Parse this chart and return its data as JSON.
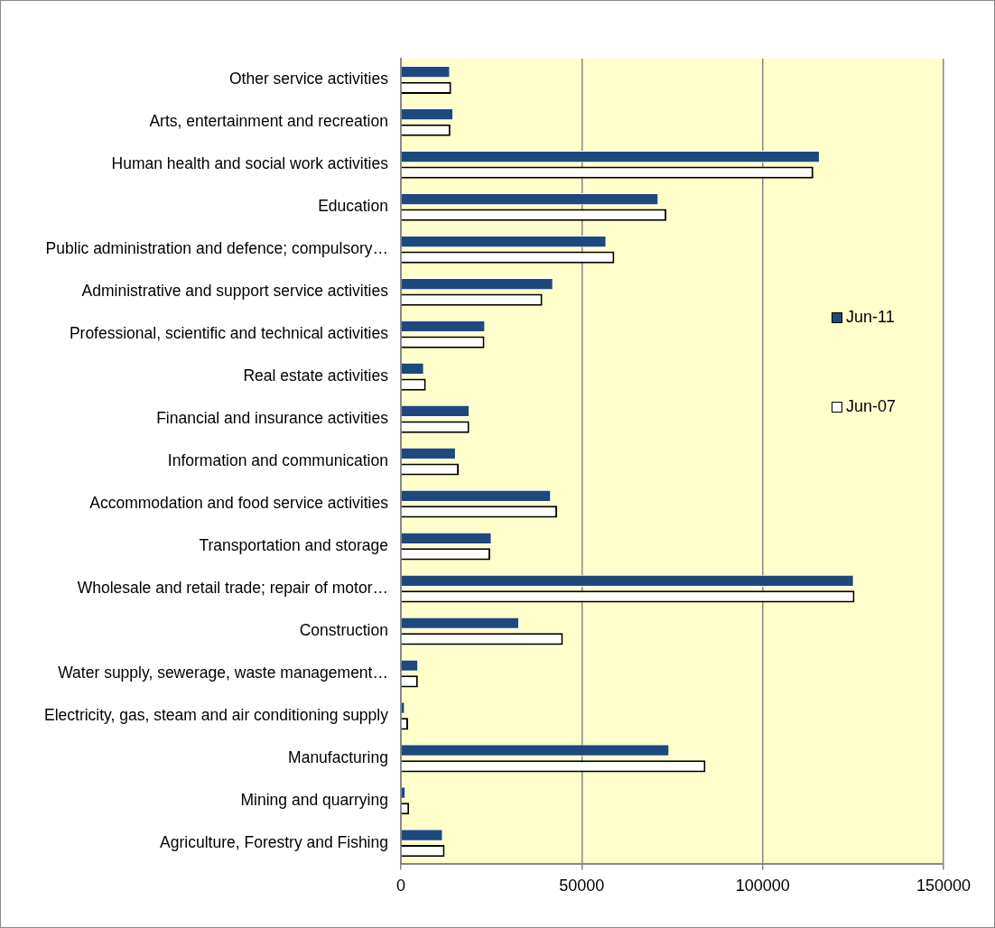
{
  "chart_data": {
    "type": "bar",
    "orientation": "horizontal",
    "categories": [
      "Other service activities",
      "Arts, entertainment and recreation",
      "Human health and social work activities",
      "Education",
      "Public administration and defence; compulsory…",
      "Administrative and support service activities",
      "Professional, scientific and technical activities",
      "Real estate activities",
      "Financial and insurance activities",
      "Information and communication",
      "Accommodation and food service activities",
      "Transportation and storage",
      "Wholesale and retail trade; repair of motor…",
      "Construction",
      "Water supply, sewerage, waste management…",
      "Electricity, gas, steam and air conditioning supply",
      "Manufacturing",
      "Mining and quarrying",
      "Agriculture, Forestry and Fishing"
    ],
    "series": [
      {
        "name": "Jun-11",
        "color": "#1f497d",
        "values": [
          13600,
          14500,
          115800,
          71200,
          56800,
          42100,
          23300,
          6400,
          19000,
          15200,
          41500,
          25100,
          125200,
          32700,
          4800,
          1100,
          74200,
          1300,
          11600
        ]
      },
      {
        "name": "Jun-07",
        "color": "#ffffff",
        "values": [
          13900,
          13700,
          114000,
          73400,
          59000,
          39100,
          23100,
          6900,
          18900,
          16000,
          43200,
          24700,
          125400,
          44800,
          4700,
          2000,
          84200,
          2300,
          12100
        ]
      }
    ],
    "xlim": [
      0,
      150000
    ],
    "xticks": [
      0,
      50000,
      100000,
      150000
    ],
    "grid": "x",
    "legend": "right"
  }
}
